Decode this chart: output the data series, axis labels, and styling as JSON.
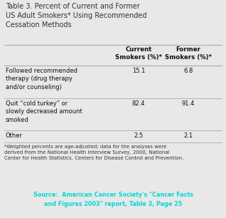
{
  "title": "Table 3. Percent of Current and Former\nUS Adult Smokers* Using Recommended\nCessation Methods",
  "col_headers": [
    "Current\nSmokers (%)*",
    "Former\nSmokers (%)*"
  ],
  "rows": [
    {
      "label": "Followed recommended\ntherapy (drug therapy\nand/or counseling)",
      "values": [
        "15.1",
        "6.8"
      ]
    },
    {
      "label": "Quit “cold turkey” or\nslowly decreased amount\nsmoked",
      "values": [
        "82.4",
        "91.4"
      ]
    },
    {
      "label": "Other",
      "values": [
        "2.5",
        "2.1"
      ]
    }
  ],
  "footnote": "*Weighted percents are age-adjusted; data for the analyses were\nderived from the National Health Interview Survey, 2000, National\nCenter for Health Statistics, Centers for Disease Control and Prevention.",
  "source_text": "Source:  American Cancer Society's \"Cancer Facts\nand Figures 2003\" report, Table 3, Page 25",
  "bg_color": "#e8e8e8",
  "source_bg": "#000000",
  "source_color": "#00d8d8",
  "title_color": "#333333",
  "body_color": "#111111",
  "footnote_color": "#333333",
  "line_color": "#aaaaaa"
}
